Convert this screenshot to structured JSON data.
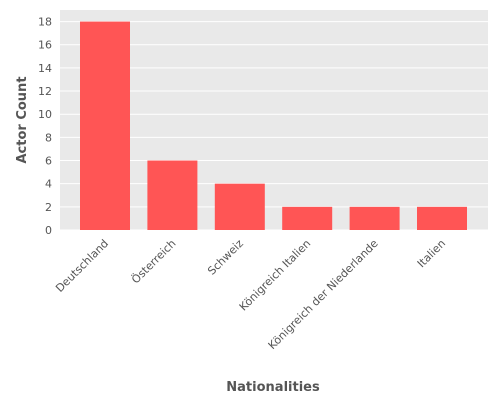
{
  "chart_data": {
    "type": "bar",
    "categories": [
      "Deutschland",
      "Österreich",
      "Schweiz",
      "Königreich Italien",
      "Königreich der Niederlande",
      "Italien"
    ],
    "values": [
      18,
      6,
      4,
      2,
      2,
      2
    ],
    "title": "",
    "xlabel": "Nationalities",
    "ylabel": "Actor Count",
    "ylim": [
      0,
      19
    ],
    "yticks": [
      0,
      2,
      4,
      6,
      8,
      10,
      12,
      14,
      16,
      18
    ],
    "grid": true,
    "legend": "none",
    "bar_color": "#ff5555",
    "plot_background": "#e9e9e9",
    "grid_color": "#ffffff"
  }
}
